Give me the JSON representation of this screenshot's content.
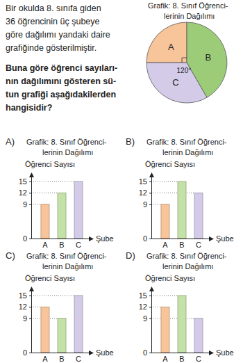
{
  "question": {
    "lines": [
      "Bir okulda 8. sınıfa giden",
      "36 öğrencinin üç şubeye",
      "göre dağılımı yandaki daire",
      "grafiğinde gösterilmiştir."
    ],
    "bold_lines": [
      "Buna göre öğrenci sayıları-",
      "nın dağılımını gösteren sü-",
      "tun grafiği aşağıdakilerden",
      "hangisidir?"
    ]
  },
  "chart_data": [
    {
      "type": "pie",
      "title": [
        "Grafik: 8. Sınıf Öğrenci-",
        "lerinin Dağılımı"
      ],
      "categories": [
        "A",
        "B",
        "C"
      ],
      "values": [
        90,
        150,
        120
      ],
      "value_labels": [
        null,
        null,
        "120°"
      ],
      "colors": [
        "#f8c49a",
        "#9ccc78",
        "#d3cbe8"
      ]
    },
    {
      "type": "bar",
      "annotation": "A)",
      "title": [
        "Grafik: 8. Sınıf Öğrenci-",
        "lerinin Dağılımı"
      ],
      "y_label": "Öğrenci Sayısı",
      "x_label": "Şube",
      "categories": [
        "A",
        "B",
        "C"
      ],
      "values": [
        9,
        12,
        15
      ],
      "colors": [
        "#f8c49a",
        "#c4e2a8",
        "#d3cbe8"
      ],
      "ylim": [
        0,
        17
      ],
      "yticks": [
        0,
        9,
        12,
        15
      ]
    },
    {
      "type": "bar",
      "annotation": "B)",
      "title": [
        "Grafik: 8. Sınıf Öğrenci-",
        "lerinin Dağılımı"
      ],
      "y_label": "Öğrenci Sayısı",
      "x_label": "Şube",
      "categories": [
        "A",
        "B",
        "C"
      ],
      "values": [
        9,
        15,
        12
      ],
      "colors": [
        "#f8c49a",
        "#c4e2a8",
        "#d3cbe8"
      ],
      "ylim": [
        0,
        17
      ],
      "yticks": [
        0,
        9,
        12,
        15
      ]
    },
    {
      "type": "bar",
      "annotation": "C)",
      "title": [
        "Grafik: 8. Sınıf Öğrenci-",
        "lerinin Dağılımı"
      ],
      "y_label": "Öğrenci Sayısı",
      "x_label": "Şube",
      "categories": [
        "A",
        "B",
        "C"
      ],
      "values": [
        12,
        9,
        15
      ],
      "colors": [
        "#f8c49a",
        "#c4e2a8",
        "#d3cbe8"
      ],
      "ylim": [
        0,
        17
      ],
      "yticks": [
        0,
        9,
        12,
        15
      ]
    },
    {
      "type": "bar",
      "annotation": "D)",
      "title": [
        "Grafik: 8. Sınıf Öğrenci-",
        "lerinin Dağılımı"
      ],
      "y_label": "Öğrenci Sayısı",
      "x_label": "Şube",
      "categories": [
        "A",
        "B",
        "C"
      ],
      "values": [
        12,
        15,
        9
      ],
      "colors": [
        "#f8c49a",
        "#c4e2a8",
        "#d3cbe8"
      ],
      "ylim": [
        0,
        17
      ],
      "yticks": [
        0,
        9,
        12,
        15
      ]
    }
  ]
}
